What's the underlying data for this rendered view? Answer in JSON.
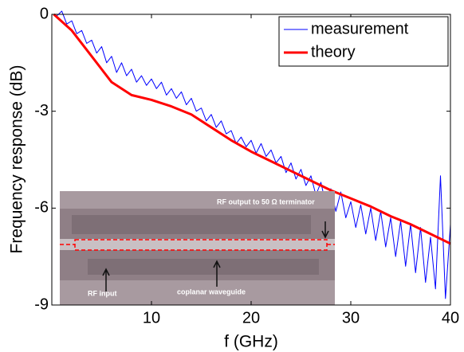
{
  "chart_data": {
    "type": "line",
    "xlabel": "f (GHz)",
    "ylabel": "Frequency response (dB)",
    "xlim": [
      0,
      40
    ],
    "ylim": [
      -9,
      0
    ],
    "xticks": [
      10,
      20,
      30,
      40
    ],
    "yticks": [
      0,
      -3,
      -6,
      -9
    ],
    "legend": "upper right",
    "annotations": [
      "RF output to 50 Ω terminator",
      "RF input",
      "coplanar waveguide"
    ],
    "series": [
      {
        "name": "measurement",
        "color": "#0000ff",
        "width": 1,
        "x": [
          0.5,
          1,
          1.5,
          2,
          2.5,
          3,
          3.5,
          4,
          4.5,
          5,
          5.5,
          6,
          6.5,
          7,
          7.5,
          8,
          8.5,
          9,
          9.5,
          10,
          10.5,
          11,
          11.5,
          12,
          12.5,
          13,
          13.5,
          14,
          14.5,
          15,
          15.5,
          16,
          16.5,
          17,
          17.5,
          18,
          18.5,
          19,
          19.5,
          20,
          20.5,
          21,
          21.5,
          22,
          22.5,
          23,
          23.5,
          24,
          24.5,
          25,
          25.5,
          26,
          26.5,
          27,
          27.5,
          28,
          28.5,
          29,
          29.5,
          30,
          30.5,
          31,
          31.5,
          32,
          32.5,
          33,
          33.5,
          34,
          34.5,
          35,
          35.5,
          36,
          36.5,
          37,
          37.5,
          38,
          38.5,
          39,
          39.5,
          40
        ],
        "values": [
          -0.05,
          0.1,
          -0.3,
          -0.2,
          -0.6,
          -0.5,
          -0.9,
          -0.8,
          -1.2,
          -1.0,
          -1.5,
          -1.3,
          -1.8,
          -1.5,
          -1.9,
          -1.7,
          -2.1,
          -1.9,
          -2.2,
          -2.0,
          -2.3,
          -2.1,
          -2.5,
          -2.3,
          -2.6,
          -2.4,
          -2.8,
          -2.6,
          -3.0,
          -2.9,
          -3.3,
          -3.1,
          -3.5,
          -3.3,
          -3.7,
          -3.6,
          -4.0,
          -3.8,
          -4.1,
          -3.9,
          -4.3,
          -4.0,
          -4.4,
          -4.2,
          -4.6,
          -4.4,
          -4.9,
          -4.6,
          -5.1,
          -4.8,
          -5.3,
          -5.0,
          -5.6,
          -5.2,
          -5.9,
          -5.4,
          -6.1,
          -5.5,
          -6.3,
          -5.8,
          -6.6,
          -5.9,
          -6.8,
          -6.0,
          -7.0,
          -6.1,
          -7.2,
          -6.3,
          -7.5,
          -6.4,
          -7.8,
          -6.5,
          -8.0,
          -6.6,
          -8.3,
          -6.9,
          -8.5,
          -5.0,
          -8.8,
          -6.5
        ]
      },
      {
        "name": "theory",
        "color": "#ff0000",
        "width": 3,
        "x": [
          0.2,
          2,
          4,
          6,
          8,
          10,
          12,
          14,
          16,
          18,
          20,
          22,
          24,
          26,
          28,
          30,
          32,
          34,
          36,
          38,
          40
        ],
        "values": [
          0,
          -0.5,
          -1.3,
          -2.1,
          -2.5,
          -2.65,
          -2.85,
          -3.1,
          -3.5,
          -3.9,
          -4.25,
          -4.55,
          -4.85,
          -5.15,
          -5.45,
          -5.7,
          -5.95,
          -6.25,
          -6.5,
          -6.8,
          -7.1
        ]
      }
    ]
  }
}
